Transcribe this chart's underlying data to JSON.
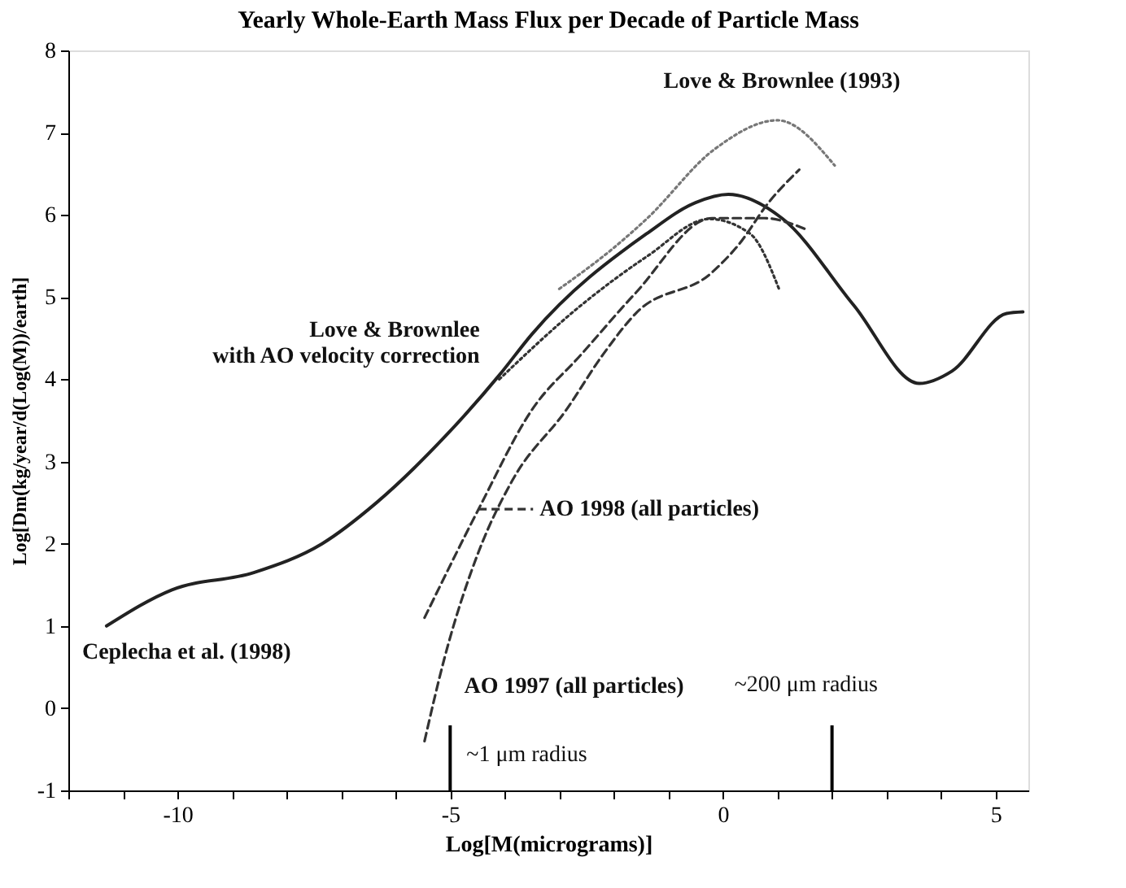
{
  "chart_data": {
    "type": "line",
    "title": "Yearly Whole-Earth Mass Flux per Decade of Particle Mass",
    "xlabel": "Log[M(micrograms)]",
    "ylabel": "Log[Dm(kg/year/d(Log(M))/earth]",
    "xlim": [
      -12,
      5.6
    ],
    "ylim": [
      -1,
      8
    ],
    "xticks": [
      {
        "value": -12,
        "label": null
      },
      {
        "value": -11,
        "label": null
      },
      -10,
      {
        "value": -9,
        "label": null
      },
      {
        "value": -8,
        "label": null
      },
      {
        "value": -7,
        "label": null
      },
      {
        "value": -6,
        "label": null
      },
      -5,
      {
        "value": -4,
        "label": null
      },
      {
        "value": -3,
        "label": null
      },
      {
        "value": -2,
        "label": null
      },
      {
        "value": -1,
        "label": null
      },
      0,
      {
        "value": 1,
        "label": null
      },
      {
        "value": 2,
        "label": null
      },
      {
        "value": 3,
        "label": null
      },
      {
        "value": 4,
        "label": null
      },
      5
    ],
    "yticks": [
      -1,
      0,
      1,
      2,
      3,
      4,
      5,
      6,
      7,
      8
    ],
    "grid": false,
    "marker": "none",
    "series": [
      {
        "name": "Ceplecha et al. (1998)",
        "color": "#222222",
        "line_style": "solid",
        "x": [
          -11.3,
          -10.1,
          -8.6,
          -7.35,
          -6.35,
          -5.1,
          -4.1,
          -3.5,
          -1.4,
          -0.5,
          0.1,
          1.1,
          2.4,
          3.6,
          4.2,
          5.2,
          5.5
        ],
        "values": [
          1.0,
          1.44,
          1.65,
          2.0,
          2.5,
          3.3,
          4.05,
          4.55,
          5.77,
          6.15,
          6.25,
          5.95,
          4.9,
          3.95,
          4.1,
          4.8,
          4.82
        ]
      },
      {
        "name": "Love  & Brownlee (1993)",
        "color": "#777777",
        "line_style": "dotted",
        "x": [
          -3.0,
          -2.0,
          -1.4,
          -0.15,
          1.0,
          2.05
        ],
        "values": [
          5.1,
          5.6,
          5.95,
          6.8,
          7.15,
          6.6
        ]
      },
      {
        "name": "Love & Brownlee\nwith AO velocity correction",
        "color": "#333333",
        "line_style": "dotted",
        "x": [
          -4.1,
          -2.6,
          -1.38,
          -0.25,
          0.5,
          1.04
        ],
        "values": [
          4.0,
          4.9,
          5.5,
          5.95,
          5.77,
          5.08
        ]
      },
      {
        "name": "AO 1998 (all particles)",
        "color": "#333333",
        "line_style": "dashed",
        "x": [
          -5.47,
          -4.48,
          -3.5,
          -2.6,
          -1.6,
          -0.2,
          0.76,
          1.5
        ],
        "values": [
          1.1,
          2.42,
          3.63,
          4.3,
          5.05,
          5.96,
          5.96,
          5.83
        ]
      },
      {
        "name": "AO 1997 (all particles)",
        "color": "#333333",
        "line_style": "dashed",
        "x": [
          -5.47,
          -5.1,
          -4.48,
          -3.86,
          -2.87,
          -2.2,
          -1.6,
          -0.2,
          0.28,
          0.85,
          1.4
        ],
        "values": [
          -0.4,
          0.62,
          1.9,
          2.77,
          3.63,
          4.3,
          4.8,
          5.3,
          5.63,
          6.16,
          6.55
        ]
      }
    ],
    "ref_lines": [
      {
        "axis": "x",
        "value": -5,
        "color": "#000000",
        "label": "~1 μm radius"
      },
      {
        "axis": "x",
        "value": 2,
        "color": "#000000",
        "label": "~200 μm radius"
      }
    ]
  }
}
